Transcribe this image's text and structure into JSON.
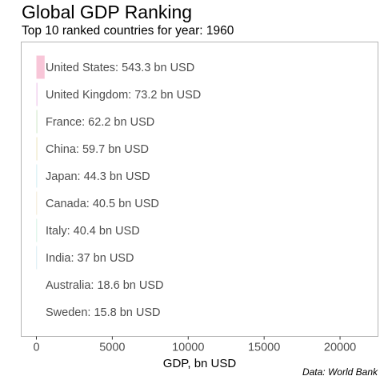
{
  "header": {
    "title": "Global GDP Ranking",
    "subtitle": "Top 10 ranked countries for year: 1960"
  },
  "caption": "Data: World Bank",
  "chart_data": {
    "type": "bar",
    "orientation": "horizontal",
    "title": "Global GDP Ranking",
    "subtitle": "Top 10 ranked countries for year: 1960",
    "xlabel": "GDP, bn USD",
    "ylabel": "",
    "xlim": [
      -1000,
      22500
    ],
    "xticks": [
      0,
      5000,
      10000,
      15000,
      20000
    ],
    "grid": false,
    "legend": "none",
    "categories": [
      "United States",
      "United Kingdom",
      "France",
      "China",
      "Japan",
      "Canada",
      "Italy",
      "India",
      "Australia",
      "Sweden"
    ],
    "values": [
      543.3,
      73.2,
      62.2,
      59.7,
      44.3,
      40.5,
      40.4,
      37,
      18.6,
      15.8
    ],
    "labels": [
      "United States: 543.3 bn USD",
      "United Kingdom: 73.2 bn USD",
      "France: 62.2 bn USD",
      "China: 59.7 bn USD",
      "Japan: 44.3 bn USD",
      "Canada: 40.5 bn USD",
      "Italy: 40.4 bn USD",
      "India: 37 bn USD",
      "Australia: 18.6 bn USD",
      "Sweden: 15.8 bn USD"
    ],
    "colors": [
      "#f8c6d8",
      "#f0d0ee",
      "#d6ead0",
      "#ece6c4",
      "#c8e8ee",
      "#ece2c8",
      "#c8ecdc",
      "#c8e4ec",
      "#ffffff",
      "#ffffff"
    ]
  }
}
